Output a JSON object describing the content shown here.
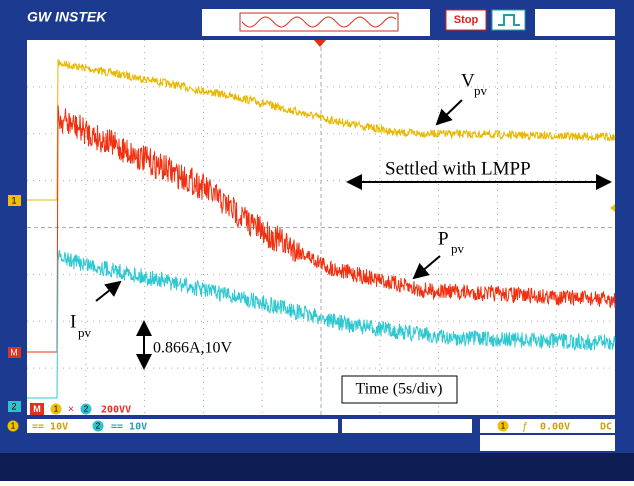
{
  "header": {
    "brand": "GW INSTEK",
    "status": "Stop"
  },
  "markers": {
    "ch1": "1",
    "math": "M",
    "ch2": "2"
  },
  "math_bar": {
    "label": "M",
    "ch1": "1",
    "op": "×",
    "ch2": "2",
    "scale": "200VV"
  },
  "status_bar": {
    "ch1": "1",
    "ch1_scale": "== 10V",
    "ch2": "2",
    "ch2_scale": "== 10V",
    "trig_ch": "1",
    "trig_icon": "ƒ",
    "trig_level": "0.00V",
    "coupling": "DC"
  },
  "annotations": {
    "vpv": {
      "main": "V",
      "sub": "pv"
    },
    "ppv": {
      "main": "P",
      "sub": "pv"
    },
    "ipv": {
      "main": "I",
      "sub": "pv"
    },
    "settled": "Settled with LMPP",
    "scale": "0.866A,10V",
    "time": "Time (5s/div)"
  }
}
